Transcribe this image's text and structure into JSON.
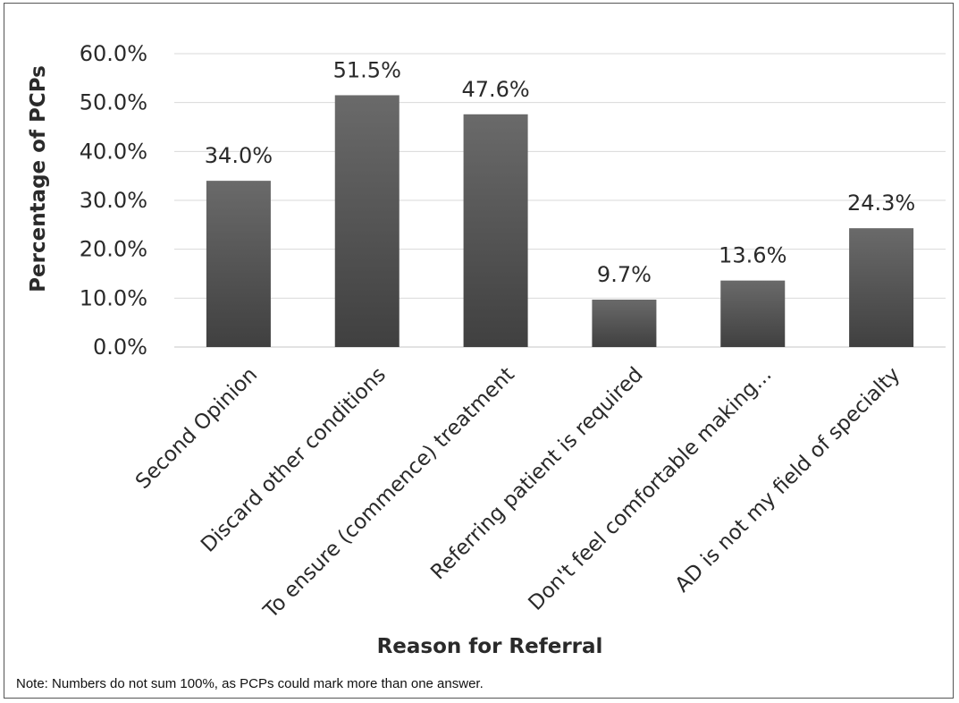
{
  "chart_data": {
    "type": "bar",
    "categories": [
      "Second Opinion",
      "Discard other conditions",
      "To ensure (commence) treatment",
      "Referring patient is required",
      "Don't feel comfortable making...",
      "AD is not my field of specialty"
    ],
    "values": [
      34.0,
      51.5,
      47.6,
      9.7,
      13.6,
      24.3
    ],
    "data_labels": [
      "34.0%",
      "51.5%",
      "47.6%",
      "9.7%",
      "13.6%",
      "24.3%"
    ],
    "yticks": [
      0,
      10,
      20,
      30,
      40,
      50,
      60
    ],
    "ytick_labels": [
      "0.0%",
      "10.0%",
      "20.0%",
      "30.0%",
      "40.0%",
      "50.0%",
      "60.0%"
    ],
    "ylim": [
      0,
      60
    ],
    "xlabel": "Reason for Referral",
    "ylabel": "Percentage of PCPs",
    "grid": true,
    "legend": "none",
    "bar_color": "#555555",
    "gridline_color": "#d9d9d9"
  },
  "note": "Note: Numbers do not sum 100%, as PCPs could mark more than one answer."
}
